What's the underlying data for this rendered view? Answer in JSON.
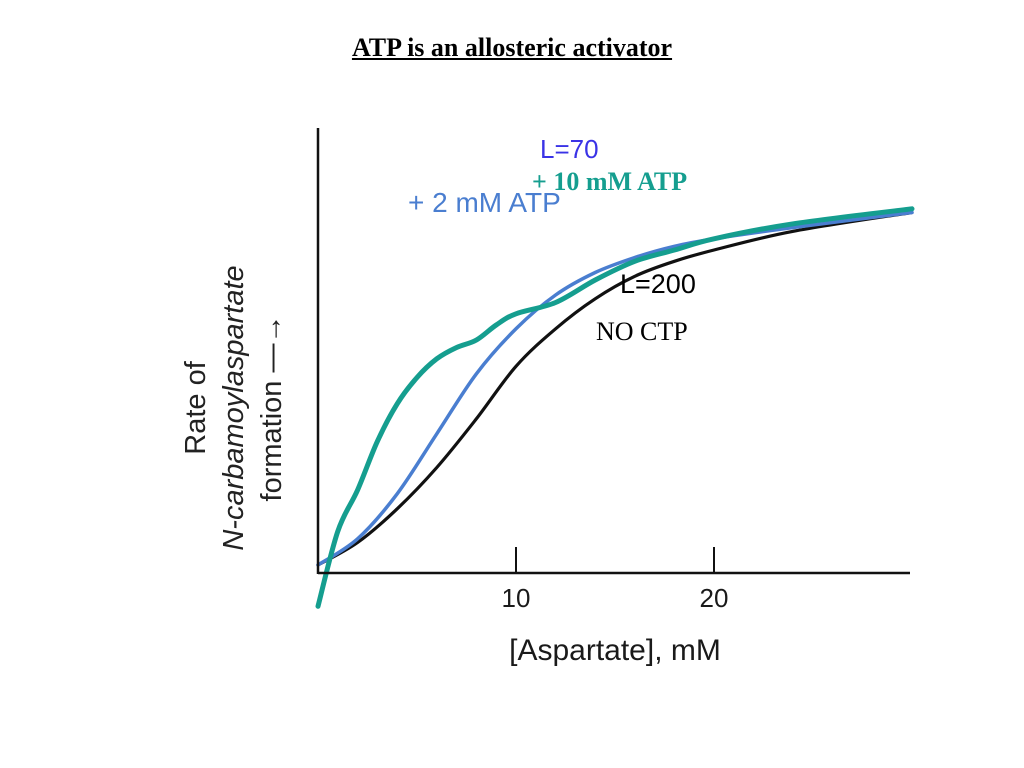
{
  "title": "ATP is an allosteric activator",
  "chart_data": {
    "type": "line",
    "xlabel": "[Aspartate], mM",
    "ylabel_line1": "Rate of",
    "ylabel_line2": "N-carbamoylaspartate",
    "ylabel_line3": "formation —→",
    "xticks": [
      10,
      20
    ],
    "xlim": [
      0,
      30
    ],
    "ylim": [
      0,
      1
    ],
    "grid": false,
    "series": [
      {
        "name": "+ 2 mM ATP",
        "color": "#4a7ed0",
        "x": [
          0,
          2,
          4,
          6,
          8,
          10,
          12,
          14,
          16,
          18,
          20,
          24,
          30
        ],
        "y": [
          0,
          0.07,
          0.19,
          0.35,
          0.51,
          0.63,
          0.72,
          0.78,
          0.82,
          0.85,
          0.87,
          0.9,
          0.94
        ]
      },
      {
        "name": "+ 10 mM ATP",
        "color": "#159e8f",
        "x": [
          0,
          1,
          2,
          3,
          4,
          5,
          6,
          7,
          8,
          9,
          10,
          12,
          14,
          16,
          18,
          20,
          24,
          30
        ],
        "y": [
          -0.11,
          0.09,
          0.2,
          0.33,
          0.43,
          0.5,
          0.55,
          0.58,
          0.6,
          0.64,
          0.67,
          0.7,
          0.76,
          0.81,
          0.84,
          0.87,
          0.91,
          0.95
        ]
      },
      {
        "name": "NO CTP",
        "color": "#111111",
        "x": [
          0,
          2,
          4,
          6,
          8,
          10,
          12,
          14,
          16,
          18,
          20,
          24,
          30
        ],
        "y": [
          0,
          0.06,
          0.15,
          0.26,
          0.39,
          0.53,
          0.63,
          0.71,
          0.77,
          0.81,
          0.84,
          0.89,
          0.94
        ]
      }
    ],
    "annotations": {
      "l70": "L=70",
      "atp10": "+ 10 mM ATP",
      "atp2": "+ 2 mM ATP",
      "l200": "L=200",
      "noctp": "NO CTP"
    }
  }
}
